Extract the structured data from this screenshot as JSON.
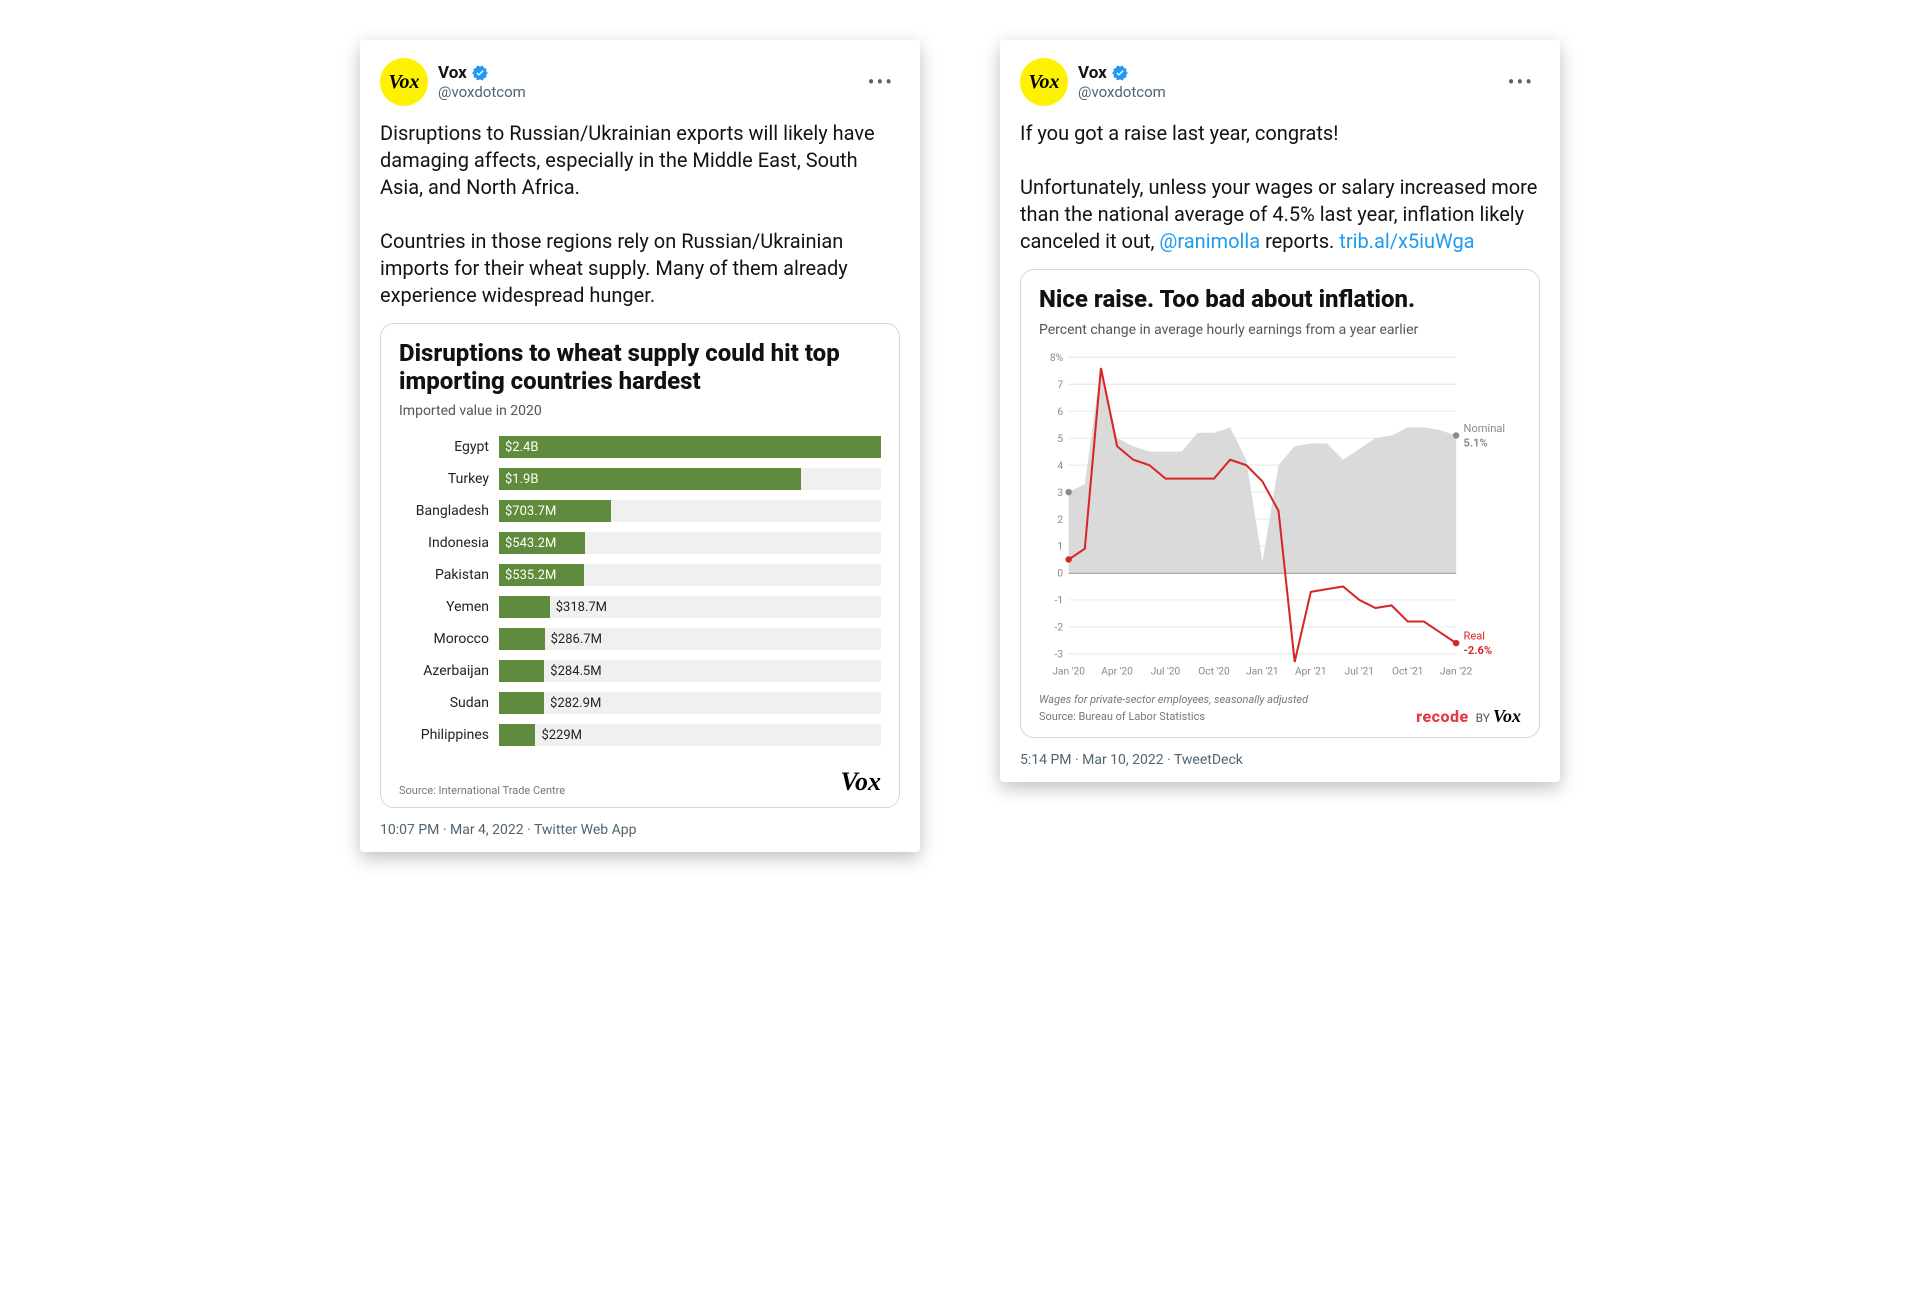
{
  "colors": {
    "avatar_bg": "#fff200",
    "verified": "#1d9bf0",
    "link": "#1d9bf0",
    "text": "#0f1419",
    "muted": "#536471",
    "bar_fill": "#5f8b3c",
    "bar_track": "#f0f0f0",
    "grid": "#e6e6e6",
    "zero_line": "#555555",
    "nominal_area": "#d4d4d4",
    "real_line": "#d62728",
    "recode": "#e63946"
  },
  "tweet1": {
    "display_name": "Vox",
    "handle": "@voxdotcom",
    "avatar_text": "Vox",
    "body": "Disruptions to Russian/Ukrainian exports will likely have damaging affects, especially in the Middle East, South Asia, and North Africa.\n\nCountries in those regions rely on Russian/Ukrainian imports for their wheat supply. Many of them already experience widespread hunger.",
    "meta": "10:07 PM · Mar 4, 2022 · Twitter Web App",
    "chart": {
      "type": "bar",
      "title": "Disruptions to wheat supply could hit top importing countries hardest",
      "subtitle": "Imported value in 2020",
      "max_value": 2400,
      "bar_color": "#5f8b3c",
      "track_color": "#f0f0f0",
      "label_inside_threshold": 500,
      "rows": [
        {
          "cat": "Egypt",
          "label": "$2.4B",
          "value": 2400
        },
        {
          "cat": "Turkey",
          "label": "$1.9B",
          "value": 1900
        },
        {
          "cat": "Bangladesh",
          "label": "$703.7M",
          "value": 703.7
        },
        {
          "cat": "Indonesia",
          "label": "$543.2M",
          "value": 543.2
        },
        {
          "cat": "Pakistan",
          "label": "$535.2M",
          "value": 535.2
        },
        {
          "cat": "Yemen",
          "label": "$318.7M",
          "value": 318.7
        },
        {
          "cat": "Morocco",
          "label": "$286.7M",
          "value": 286.7
        },
        {
          "cat": "Azerbaijan",
          "label": "$284.5M",
          "value": 284.5
        },
        {
          "cat": "Sudan",
          "label": "$282.9M",
          "value": 282.9
        },
        {
          "cat": "Philippines",
          "label": "$229M",
          "value": 229
        }
      ],
      "source": "Source: International Trade Centre",
      "logo": "Vox"
    }
  },
  "tweet2": {
    "display_name": "Vox",
    "handle": "@voxdotcom",
    "avatar_text": "Vox",
    "body_pre": "If you got a raise last year, congrats!\n\nUnfortunately, unless your wages or salary increased more than the national average of 4.5% last year, inflation likely canceled it out, ",
    "mention": "@ranimolla",
    "body_mid": " reports. ",
    "link_text": "trib.al/x5iuWga",
    "meta": "5:14 PM · Mar 10, 2022 · TweetDeck",
    "chart": {
      "type": "line",
      "title": "Nice raise. Too bad about inflation.",
      "subtitle": "Percent change in average hourly earnings from a year earlier",
      "ylim": [
        -3,
        8
      ],
      "ytick_step": 1,
      "x_labels": [
        "Jan '20",
        "Apr '20",
        "Jul '20",
        "Oct '20",
        "Jan '21",
        "Apr '21",
        "Jul '21",
        "Oct '21",
        "Jan '22"
      ],
      "nominal": {
        "values": [
          3.0,
          3.3,
          7.7,
          5.0,
          4.7,
          4.5,
          4.5,
          4.5,
          5.2,
          5.2,
          5.4,
          4.2,
          0.4,
          4.0,
          4.7,
          4.8,
          4.8,
          4.2,
          4.6,
          5.0,
          5.1,
          5.4,
          5.4,
          5.3,
          5.1
        ],
        "end_label": "Nominal",
        "end_value_label": "5.1%",
        "end_color": "#8a8a8a"
      },
      "real": {
        "values": [
          0.5,
          0.9,
          7.6,
          4.7,
          4.2,
          4.0,
          3.5,
          3.5,
          3.5,
          3.5,
          4.2,
          4.0,
          3.4,
          2.3,
          -3.3,
          -0.7,
          -0.6,
          -0.5,
          -1.0,
          -1.3,
          -1.2,
          -1.8,
          -1.8,
          -2.2,
          -2.6
        ],
        "end_label": "Real",
        "end_value_label": "-2.6%",
        "end_color": "#d62728"
      },
      "note": "Wages for private-sector employees, seasonally adjusted",
      "source": "Source: Bureau of Labor Statistics",
      "logo_recode": "recode",
      "logo_by": " BY ",
      "logo_vox": "Vox"
    }
  }
}
